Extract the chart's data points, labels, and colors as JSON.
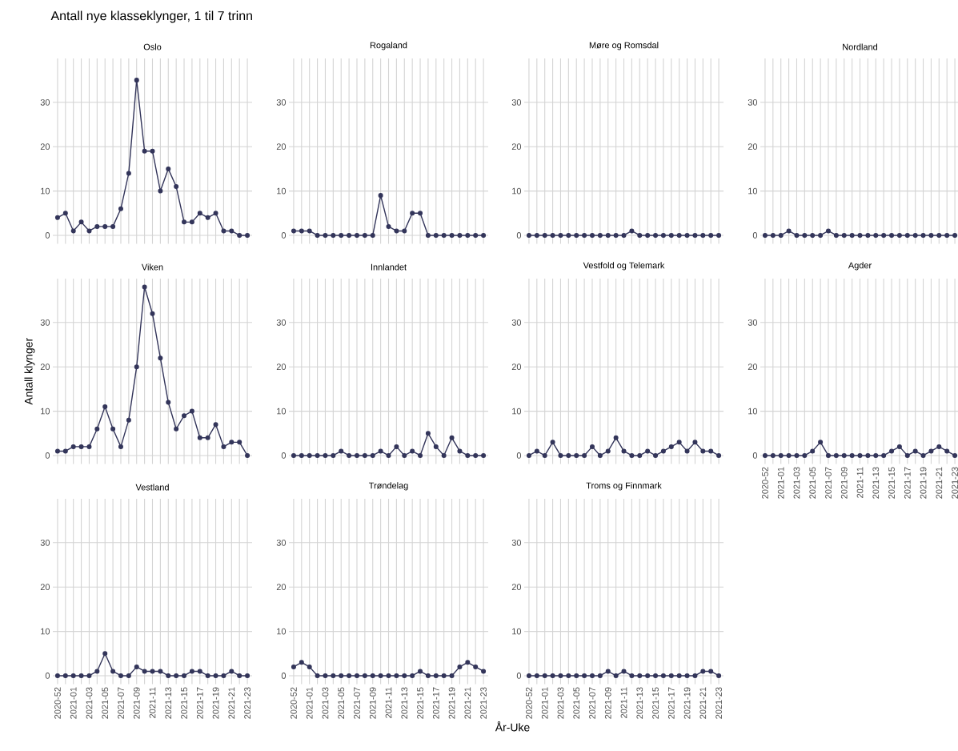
{
  "chart_data": [
    {
      "type": "line",
      "title": "Antall nye klasseklynger, 1 til 7 trinn",
      "subtitle": "Oslo",
      "categories": [
        "2020-52",
        null,
        "2021-01",
        null,
        "2021-03",
        null,
        "2021-05",
        null,
        "2021-07",
        null,
        "2021-09",
        null,
        "2021-11",
        null,
        "2021-13",
        null,
        "2021-15",
        null,
        "2021-17",
        null,
        "2021-19",
        null,
        "2021-21",
        null,
        "2021-23"
      ],
      "series": [
        {
          "color": "#33355a",
          "values": [
            4,
            5,
            1,
            3,
            1,
            2,
            2,
            2,
            6,
            14,
            35,
            19,
            19,
            10,
            15,
            11,
            3,
            3,
            5,
            4,
            5,
            1,
            1,
            0,
            0
          ]
        }
      ],
      "ylim": [
        -1.9,
        39.9
      ],
      "yticks": [
        0,
        10,
        20,
        30
      ],
      "grid": true,
      "marker": "circle",
      "tick_labels": "y"
    },
    {
      "type": "line",
      "subtitle": "Rogaland",
      "categories": [
        "2020-52",
        null,
        "2021-01",
        null,
        "2021-03",
        null,
        "2021-05",
        null,
        "2021-07",
        null,
        "2021-09",
        null,
        "2021-11",
        null,
        "2021-13",
        null,
        "2021-15",
        null,
        "2021-17",
        null,
        "2021-19",
        null,
        "2021-21",
        null,
        "2021-23"
      ],
      "series": [
        {
          "color": "#33355a",
          "values": [
            1,
            1,
            1,
            0,
            0,
            0,
            0,
            0,
            0,
            0,
            0,
            9,
            2,
            1,
            1,
            5,
            5,
            0,
            0,
            0,
            0,
            0,
            0,
            0,
            0
          ]
        }
      ],
      "ylim": [
        -1.9,
        39.9
      ],
      "yticks": [
        0,
        10,
        20,
        30
      ],
      "grid": true,
      "marker": "circle",
      "tick_labels": "y"
    },
    {
      "type": "line",
      "subtitle": "Møre og Romsdal",
      "categories": [
        "2020-52",
        null,
        "2021-01",
        null,
        "2021-03",
        null,
        "2021-05",
        null,
        "2021-07",
        null,
        "2021-09",
        null,
        "2021-11",
        null,
        "2021-13",
        null,
        "2021-15",
        null,
        "2021-17",
        null,
        "2021-19",
        null,
        "2021-21",
        null,
        "2021-23"
      ],
      "series": [
        {
          "color": "#33355a",
          "values": [
            0,
            0,
            0,
            0,
            0,
            0,
            0,
            0,
            0,
            0,
            0,
            0,
            0,
            1,
            0,
            0,
            0,
            0,
            0,
            0,
            0,
            0,
            0,
            0,
            0
          ]
        }
      ],
      "ylim": [
        -1.9,
        39.9
      ],
      "yticks": [
        0,
        10,
        20,
        30
      ],
      "grid": true,
      "marker": "circle",
      "tick_labels": "y"
    },
    {
      "type": "line",
      "subtitle": "Nordland",
      "categories": [
        "2020-52",
        null,
        "2021-01",
        null,
        "2021-03",
        null,
        "2021-05",
        null,
        "2021-07",
        null,
        "2021-09",
        null,
        "2021-11",
        null,
        "2021-13",
        null,
        "2021-15",
        null,
        "2021-17",
        null,
        "2021-19",
        null,
        "2021-21",
        null,
        "2021-23"
      ],
      "series": [
        {
          "color": "#33355a",
          "values": [
            0,
            0,
            0,
            1,
            0,
            0,
            0,
            0,
            1,
            0,
            0,
            0,
            0,
            0,
            0,
            0,
            0,
            0,
            0,
            0,
            0,
            0,
            0,
            0,
            0
          ]
        }
      ],
      "ylim": [
        -1.9,
        39.9
      ],
      "yticks": [
        0,
        10,
        20,
        30
      ],
      "grid": true,
      "marker": "circle",
      "tick_labels": "y"
    },
    {
      "type": "line",
      "subtitle": "Viken",
      "ylabel": "Antall klynger",
      "categories": [
        "2020-52",
        null,
        "2021-01",
        null,
        "2021-03",
        null,
        "2021-05",
        null,
        "2021-07",
        null,
        "2021-09",
        null,
        "2021-11",
        null,
        "2021-13",
        null,
        "2021-15",
        null,
        "2021-17",
        null,
        "2021-19",
        null,
        "2021-21",
        null,
        "2021-23"
      ],
      "series": [
        {
          "color": "#33355a",
          "values": [
            1,
            1,
            2,
            2,
            2,
            6,
            11,
            6,
            2,
            8,
            20,
            38,
            32,
            22,
            12,
            6,
            9,
            10,
            4,
            4,
            7,
            2,
            3,
            3,
            0
          ]
        }
      ],
      "ylim": [
        -1.9,
        39.9
      ],
      "yticks": [
        0,
        10,
        20,
        30
      ],
      "grid": true,
      "marker": "circle",
      "tick_labels": "y"
    },
    {
      "type": "line",
      "subtitle": "Innlandet",
      "categories": [
        "2020-52",
        null,
        "2021-01",
        null,
        "2021-03",
        null,
        "2021-05",
        null,
        "2021-07",
        null,
        "2021-09",
        null,
        "2021-11",
        null,
        "2021-13",
        null,
        "2021-15",
        null,
        "2021-17",
        null,
        "2021-19",
        null,
        "2021-21",
        null,
        "2021-23"
      ],
      "series": [
        {
          "color": "#33355a",
          "values": [
            0,
            0,
            0,
            0,
            0,
            0,
            1,
            0,
            0,
            0,
            0,
            1,
            0,
            2,
            0,
            1,
            0,
            5,
            2,
            0,
            4,
            1,
            0,
            0,
            0
          ]
        }
      ],
      "ylim": [
        -1.9,
        39.9
      ],
      "yticks": [
        0,
        10,
        20,
        30
      ],
      "grid": true,
      "marker": "circle",
      "tick_labels": "y"
    },
    {
      "type": "line",
      "subtitle": "Vestfold og Telemark",
      "categories": [
        "2020-52",
        null,
        "2021-01",
        null,
        "2021-03",
        null,
        "2021-05",
        null,
        "2021-07",
        null,
        "2021-09",
        null,
        "2021-11",
        null,
        "2021-13",
        null,
        "2021-15",
        null,
        "2021-17",
        null,
        "2021-19",
        null,
        "2021-21",
        null,
        "2021-23"
      ],
      "series": [
        {
          "color": "#33355a",
          "values": [
            0,
            1,
            0,
            3,
            0,
            0,
            0,
            0,
            2,
            0,
            1,
            4,
            1,
            0,
            0,
            1,
            0,
            1,
            2,
            3,
            1,
            3,
            1,
            1,
            0
          ]
        }
      ],
      "ylim": [
        -1.9,
        39.9
      ],
      "yticks": [
        0,
        10,
        20,
        30
      ],
      "grid": true,
      "marker": "circle",
      "tick_labels": "y"
    },
    {
      "type": "line",
      "subtitle": "Agder",
      "categories": [
        "2020-52",
        null,
        "2021-01",
        null,
        "2021-03",
        null,
        "2021-05",
        null,
        "2021-07",
        null,
        "2021-09",
        null,
        "2021-11",
        null,
        "2021-13",
        null,
        "2021-15",
        null,
        "2021-17",
        null,
        "2021-19",
        null,
        "2021-21",
        null,
        "2021-23"
      ],
      "series": [
        {
          "color": "#33355a",
          "values": [
            0,
            0,
            0,
            0,
            0,
            0,
            1,
            3,
            0,
            0,
            0,
            0,
            0,
            0,
            0,
            0,
            1,
            2,
            0,
            1,
            0,
            1,
            2,
            1,
            0
          ]
        }
      ],
      "ylim": [
        -1.9,
        39.9
      ],
      "yticks": [
        0,
        10,
        20,
        30
      ],
      "grid": true,
      "marker": "circle"
    },
    {
      "type": "line",
      "subtitle": "Vestland",
      "categories": [
        "2020-52",
        null,
        "2021-01",
        null,
        "2021-03",
        null,
        "2021-05",
        null,
        "2021-07",
        null,
        "2021-09",
        null,
        "2021-11",
        null,
        "2021-13",
        null,
        "2021-15",
        null,
        "2021-17",
        null,
        "2021-19",
        null,
        "2021-21",
        null,
        "2021-23"
      ],
      "series": [
        {
          "color": "#33355a",
          "values": [
            0,
            0,
            0,
            0,
            0,
            1,
            5,
            1,
            0,
            0,
            2,
            1,
            1,
            1,
            0,
            0,
            0,
            1,
            1,
            0,
            0,
            0,
            1,
            0,
            0
          ]
        }
      ],
      "ylim": [
        -1.9,
        39.9
      ],
      "yticks": [
        0,
        10,
        20,
        30
      ],
      "grid": true,
      "marker": "circle"
    },
    {
      "type": "line",
      "subtitle": "Trøndelag",
      "xlabel": "År-Uke",
      "categories": [
        "2020-52",
        null,
        "2021-01",
        null,
        "2021-03",
        null,
        "2021-05",
        null,
        "2021-07",
        null,
        "2021-09",
        null,
        "2021-11",
        null,
        "2021-13",
        null,
        "2021-15",
        null,
        "2021-17",
        null,
        "2021-19",
        null,
        "2021-21",
        null,
        "2021-23"
      ],
      "series": [
        {
          "color": "#33355a",
          "values": [
            2,
            3,
            2,
            0,
            0,
            0,
            0,
            0,
            0,
            0,
            0,
            0,
            0,
            0,
            0,
            0,
            1,
            0,
            0,
            0,
            0,
            2,
            3,
            2,
            1
          ]
        }
      ],
      "ylim": [
        -1.9,
        39.9
      ],
      "yticks": [
        0,
        10,
        20,
        30
      ],
      "grid": true,
      "marker": "circle"
    },
    {
      "type": "line",
      "subtitle": "Troms og Finnmark",
      "categories": [
        "2020-52",
        null,
        "2021-01",
        null,
        "2021-03",
        null,
        "2021-05",
        null,
        "2021-07",
        null,
        "2021-09",
        null,
        "2021-11",
        null,
        "2021-13",
        null,
        "2021-15",
        null,
        "2021-17",
        null,
        "2021-19",
        null,
        "2021-21",
        null,
        "2021-23"
      ],
      "series": [
        {
          "color": "#33355a",
          "values": [
            0,
            0,
            0,
            0,
            0,
            0,
            0,
            0,
            0,
            0,
            1,
            0,
            1,
            0,
            0,
            0,
            0,
            0,
            0,
            0,
            0,
            0,
            1,
            1,
            0
          ]
        }
      ],
      "ylim": [
        -1.9,
        39.9
      ],
      "yticks": [
        0,
        10,
        20,
        30
      ],
      "grid": true,
      "marker": "circle"
    }
  ]
}
